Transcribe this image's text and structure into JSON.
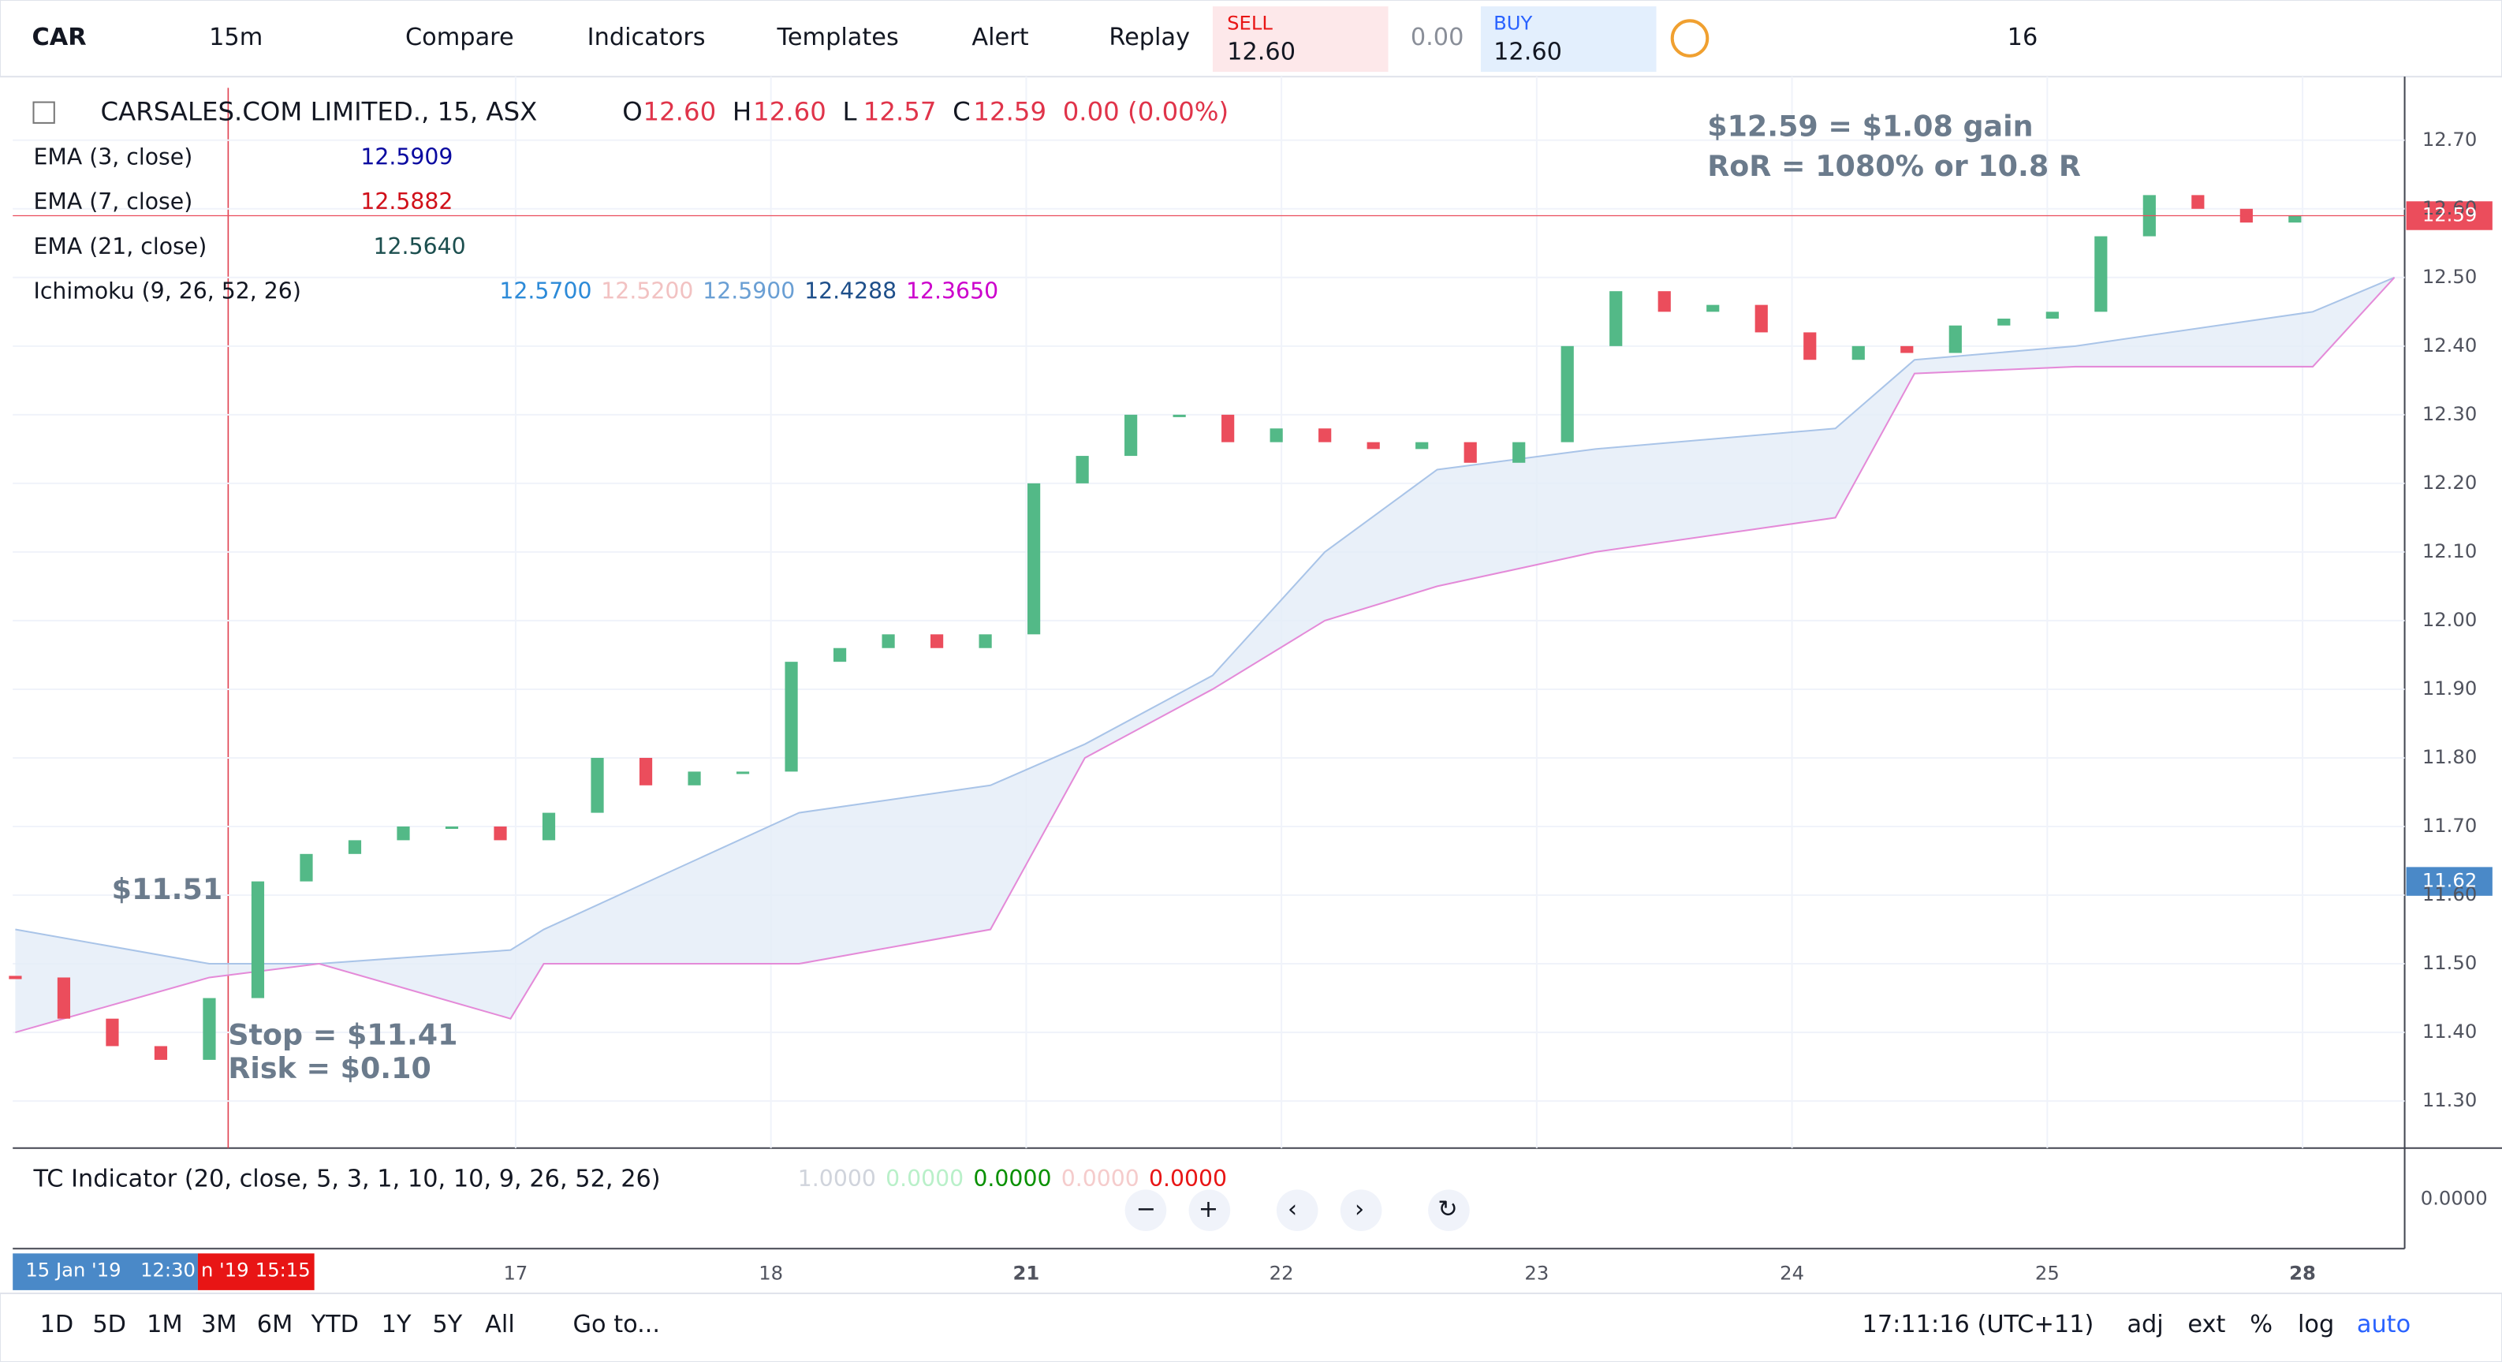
{
  "toolbar": {
    "symbol": "CAR",
    "interval": "15m",
    "compare": "Compare",
    "indicators": "Indicators",
    "templates": "Templates",
    "alert": "Alert",
    "replay": "Replay",
    "sell_label": "SELL",
    "sell_price": "12.60",
    "spread": "0.00",
    "buy_label": "BUY",
    "buy_price": "12.60",
    "font_size": "16"
  },
  "legend": {
    "title": "CARSALES.COM LIMITED., 15, ASX",
    "ohlc": [
      {
        "label": "O",
        "value": "12.60"
      },
      {
        "label": "H",
        "value": "12.60"
      },
      {
        "label": "L",
        "value": "12.57"
      },
      {
        "label": "C",
        "value": "12.59"
      }
    ],
    "change": "0.00 (0.00%)",
    "indicators": [
      {
        "label": "EMA (3, close)",
        "values": [
          "12.5909"
        ]
      },
      {
        "label": "EMA (7, close)",
        "values": [
          "12.5882"
        ]
      },
      {
        "label": "EMA (21, close)",
        "values": [
          "12.5640"
        ]
      },
      {
        "label": "Ichimoku (9, 26, 52, 26)",
        "values": [
          "12.5700",
          "12.5200",
          "12.5900",
          "12.4288",
          "12.3650"
        ]
      }
    ]
  },
  "annotations": {
    "entry": "$11.51",
    "gain": "$12.59 = $1.08 gain",
    "ror": "RoR = 1080% or 10.8 R",
    "stop": "Stop = $11.41",
    "risk": "Risk = $0.10"
  },
  "chart_data": {
    "type": "candlestick",
    "x": [
      -0.96,
      -0.77,
      -0.58,
      -0.39,
      -0.2,
      -0.01,
      0.18,
      0.37,
      0.56,
      0.75,
      0.94,
      1.13,
      1.32,
      1.51,
      1.7,
      1.89,
      2.08,
      2.27,
      2.46,
      2.65,
      2.84,
      3.03,
      3.22,
      3.41,
      3.6,
      3.79,
      3.98,
      4.17,
      4.36,
      4.55,
      4.74,
      4.93,
      5.12,
      5.31,
      5.5,
      5.69,
      5.88,
      6.07,
      6.26,
      6.45,
      6.64,
      6.83,
      7.02,
      7.21,
      7.4,
      7.59,
      7.78,
      7.97
    ],
    "close": [
      11.48,
      11.42,
      11.38,
      11.36,
      11.45,
      11.62,
      11.66,
      11.68,
      11.7,
      11.7,
      11.68,
      11.72,
      11.8,
      11.76,
      11.78,
      11.78,
      11.94,
      11.96,
      11.98,
      11.96,
      11.98,
      12.2,
      12.24,
      12.3,
      12.3,
      12.26,
      12.28,
      12.26,
      12.25,
      12.26,
      12.23,
      12.26,
      12.4,
      12.48,
      12.45,
      12.46,
      12.42,
      12.38,
      12.4,
      12.39,
      12.43,
      12.44,
      12.45,
      12.56,
      12.62,
      12.6,
      12.58,
      12.59
    ],
    "up_color": "#53b987",
    "down_color": "#eb4d5c",
    "cloud": {
      "x": [
        -0.96,
        -0.2,
        0.23,
        0.98,
        1.11,
        2.11,
        2.86,
        3.23,
        3.73,
        4.17,
        4.61,
        5.23,
        6.17,
        6.48,
        7.11,
        8.04,
        8.36
      ],
      "upper": [
        11.55,
        11.5,
        11.5,
        11.52,
        11.55,
        11.72,
        11.76,
        11.82,
        11.92,
        12.1,
        12.22,
        12.25,
        12.28,
        12.38,
        12.4,
        12.45,
        12.5
      ],
      "lower": [
        11.4,
        11.48,
        11.5,
        11.42,
        11.5,
        11.5,
        11.55,
        11.8,
        11.9,
        12.0,
        12.05,
        12.1,
        12.15,
        12.36,
        12.37,
        12.37,
        12.5
      ],
      "upper_color": "#a9c4e8",
      "lower_color": "#e48ad8",
      "fill": "#e3ecf7"
    },
    "xlim": [
      -0.97,
      8.4
    ],
    "xticks": [
      {
        "value": 1,
        "label": "17"
      },
      {
        "value": 2,
        "label": "18"
      },
      {
        "value": 3,
        "label": "21"
      },
      {
        "value": 4,
        "label": "22"
      },
      {
        "value": 5,
        "label": "23"
      },
      {
        "value": 6,
        "label": "24"
      },
      {
        "value": 7,
        "label": "25"
      },
      {
        "value": 8,
        "label": "28"
      }
    ],
    "ylim": [
      11.2315,
      12.7926
    ],
    "yticks": [
      {
        "value": 12.7,
        "label": "12.70"
      },
      {
        "value": 12.6,
        "label": "12.60"
      },
      {
        "value": 12.5,
        "label": "12.50"
      },
      {
        "value": 12.4,
        "label": "12.40"
      },
      {
        "value": 12.3,
        "label": "12.30"
      },
      {
        "value": 12.2,
        "label": "12.20"
      },
      {
        "value": 12.1,
        "label": "12.10"
      },
      {
        "value": 12.0,
        "label": "12.00"
      },
      {
        "value": 11.9,
        "label": "11.90"
      },
      {
        "value": 11.8,
        "label": "11.80"
      },
      {
        "value": 11.7,
        "label": "11.70"
      },
      {
        "value": 11.6,
        "label": "11.60"
      },
      {
        "value": 11.5,
        "label": "11.50"
      },
      {
        "value": 11.4,
        "label": "11.40"
      },
      {
        "value": 11.3,
        "label": "11.30"
      }
    ],
    "grid": true,
    "last_price": {
      "value": 12.59,
      "label": "12.59"
    },
    "crosshair_price": {
      "value": 11.62,
      "label": "11.62"
    }
  },
  "tc_indicator": {
    "label": "TC Indicator (20, close, 5, 3, 1, 10, 10, 9, 26, 52, 26)",
    "values": [
      "1.0000",
      "0.0000",
      "0.0000",
      "0.0000",
      "0.0000"
    ],
    "axis": "0.0000"
  },
  "date_labels": {
    "start_date": "15 Jan '19",
    "start_time": "12:30",
    "cursor_date": "n '19",
    "cursor_time": "15:15"
  },
  "bottom_bar": {
    "ranges": [
      "1D",
      "5D",
      "1M",
      "3M",
      "6M",
      "YTD",
      "1Y",
      "5Y",
      "All"
    ],
    "goto": "Go to...",
    "clock": "17:11:16 (UTC+11)",
    "adj": "adj",
    "ext": "ext",
    "percent": "%",
    "log": "log",
    "auto": "auto"
  }
}
